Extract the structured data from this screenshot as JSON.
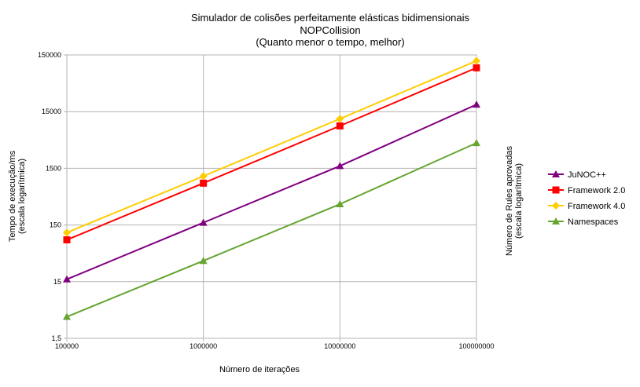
{
  "chart_data": {
    "type": "line",
    "title": [
      "Simulador de colisões perfeitamente elásticas bidimensionais",
      "NOPCollision",
      "(Quanto menor o tempo, melhor)"
    ],
    "xlabel": "Número de iterações",
    "ylabel": [
      "Tempo de execução/ms",
      "(escala logarítmica)"
    ],
    "y2label": [
      "Número de Rules aprovadas",
      "(escala logarítmica)"
    ],
    "x_scale": "log",
    "y_scale": "log",
    "categories": [
      "100000",
      "1000000",
      "10000000",
      "100000000"
    ],
    "x": [
      100000,
      1000000,
      10000000,
      100000000
    ],
    "y_ticks": [
      1.5,
      15,
      150,
      1500,
      15000,
      150000
    ],
    "y_tick_labels": [
      "1,5",
      "15",
      "150",
      "1500",
      "15000",
      "150000"
    ],
    "ylim": [
      1.5,
      150000
    ],
    "grid": true,
    "legend_position": "right",
    "series": [
      {
        "name": "JuNOC++",
        "marker": "triangle",
        "color": "#800080",
        "values": [
          16.5,
          165,
          1650,
          20000
        ]
      },
      {
        "name": "Framework 2.0",
        "marker": "square",
        "color": "#ff0000",
        "values": [
          82,
          820,
          8400,
          89000
        ]
      },
      {
        "name": "Framework 4.0",
        "marker": "diamond",
        "color": "#ffcc00",
        "values": [
          110,
          1090,
          11200,
          118000
        ]
      },
      {
        "name": "Namespaces",
        "marker": "triangle",
        "color": "#66a530",
        "values": [
          3.6,
          35,
          350,
          4200
        ]
      }
    ]
  }
}
